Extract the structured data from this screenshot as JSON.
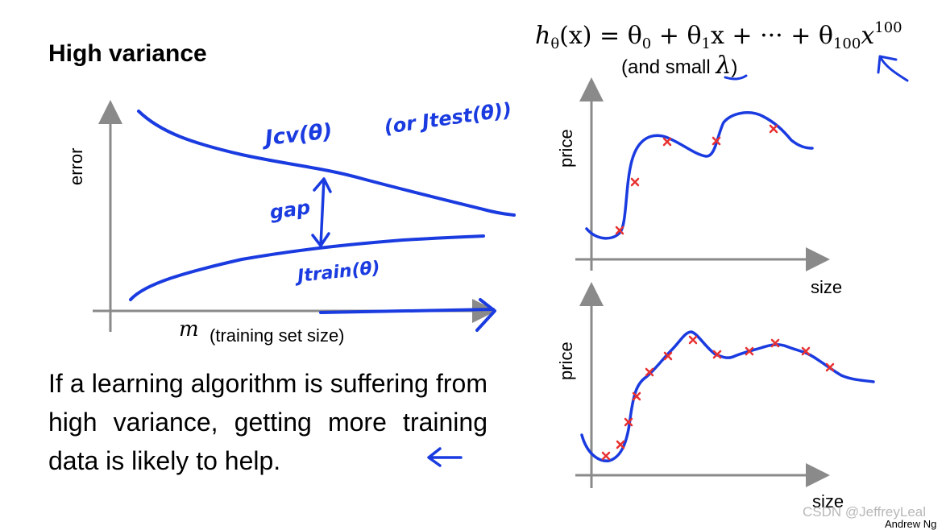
{
  "slide": {
    "title": "High variance",
    "formula": {
      "h": "h",
      "theta_sub": "θ",
      "x": "(x) = θ",
      "s0": "0",
      "mid": " + θ",
      "s1": "1",
      "mid2": "x + ··· + θ",
      "s100": "100",
      "xend": "x",
      "exp": "100"
    },
    "lambda_note": {
      "prefix": "(and small ",
      "lambda": "λ",
      "suffix": ")"
    },
    "learning_curve": {
      "y_axis_label": "error",
      "x_axis_symbol": "m",
      "x_axis_label": "(training set size)",
      "annotations": {
        "jcv": "Jcv(θ)",
        "jtest": "(or Jtest(θ))",
        "gap": "gap",
        "jtrain": "Jtrain(θ)"
      }
    },
    "conclusion": "If a learning algorithm is suffering from high variance, getting more training data is likely to help.",
    "plot_top": {
      "y_axis_label": "price",
      "x_axis_label": "size"
    },
    "plot_bottom": {
      "y_axis_label": "price",
      "x_axis_label": "size"
    },
    "watermark": "CSDN @JeffreyLeal",
    "author": "Andrew Ng"
  },
  "colors": {
    "ink": "#1a3be0",
    "marker": "#e83030",
    "axis": "#8a8a8a"
  }
}
